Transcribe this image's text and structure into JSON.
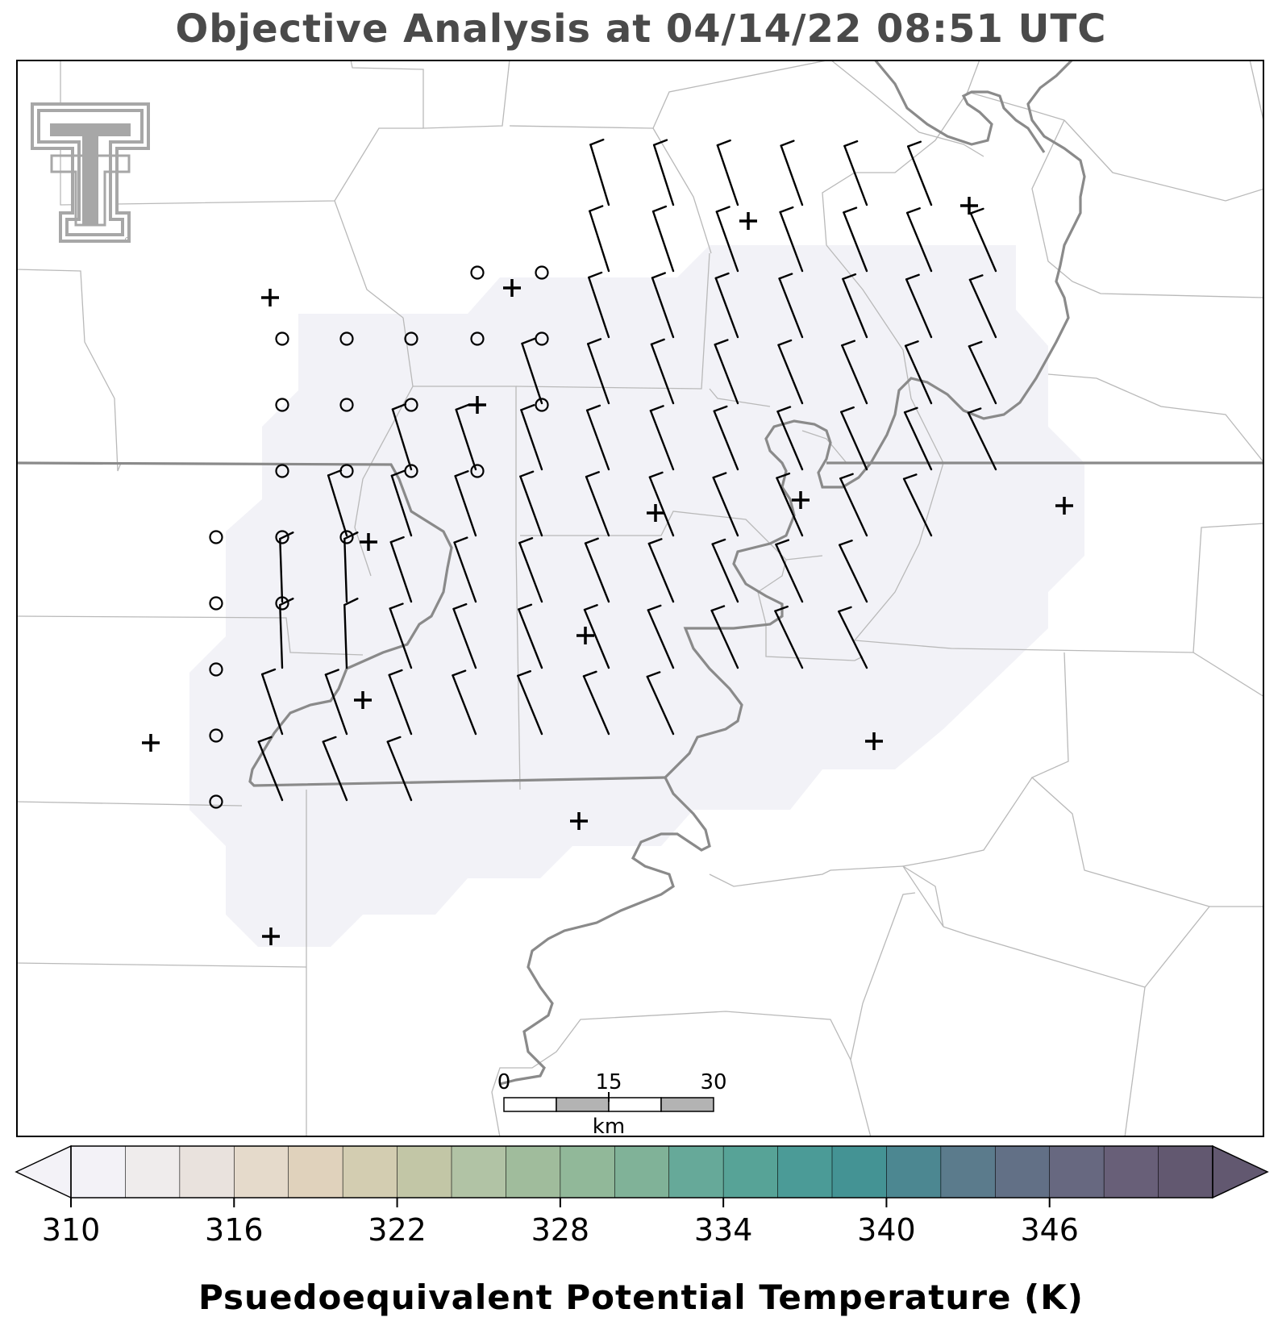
{
  "title": "Objective Analysis at 04/14/22 08:51 UTC",
  "colorbar": {
    "label": "Psuedoequivalent Potential Temperature (K)",
    "tick_labels": [
      "310",
      "316",
      "322",
      "328",
      "334",
      "340",
      "346"
    ],
    "colors": [
      "#f3f2f7",
      "#efecec",
      "#e9e2dd",
      "#e5dacb",
      "#e0d2bc",
      "#d3cdb1",
      "#c2c6a6",
      "#b1c3a5",
      "#a0bc9c",
      "#91b899",
      "#80b298",
      "#66a999",
      "#57a397",
      "#4b9b97",
      "#449394",
      "#4c8791",
      "#5b7b8c",
      "#627086",
      "#676880",
      "#685f78",
      "#625870"
    ],
    "extend": "both"
  },
  "scale_bar": {
    "labels": [
      "0",
      "15",
      "30"
    ],
    "unit": "km"
  },
  "map": {
    "shaded_region_color": "#f2f2f7",
    "station_symbols": {
      "calm": "circle-icon",
      "station": "plus-icon",
      "wind": "wind-barb-icon"
    }
  },
  "logo": "texas-tech-logo"
}
